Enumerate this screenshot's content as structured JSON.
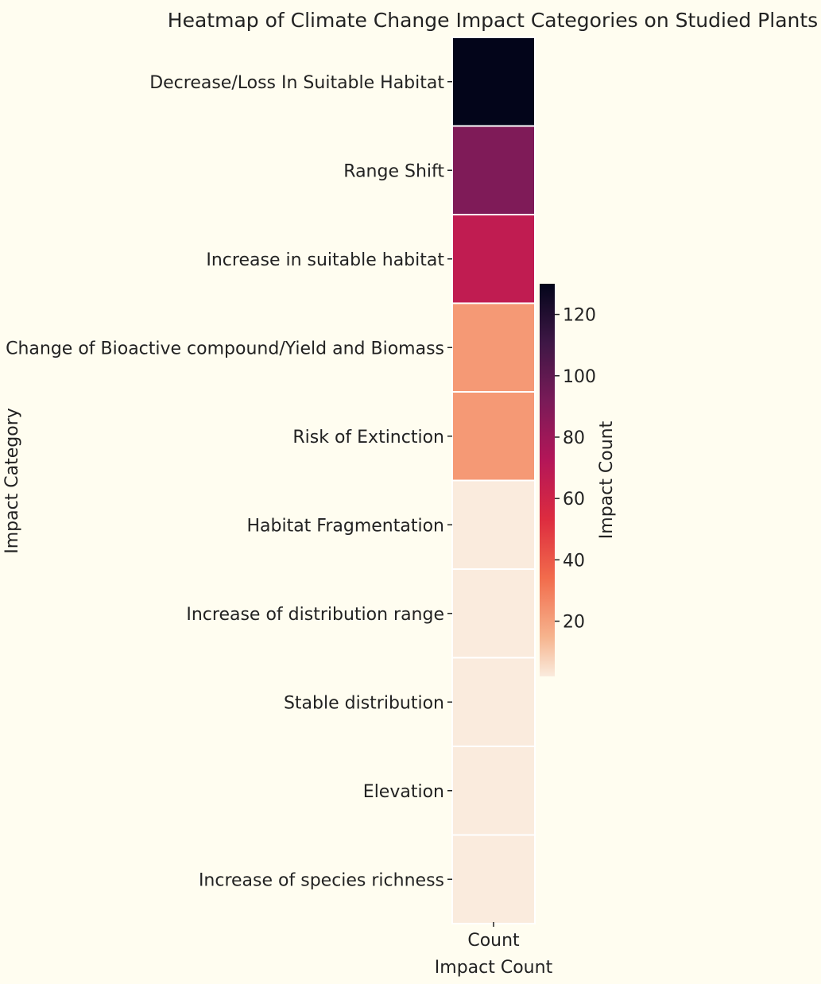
{
  "chart_data": {
    "type": "heatmap",
    "title": "Heatmap of Climate Change Impact Categories on Studied Plants",
    "xlabel": "Impact Count",
    "ylabel": "Impact Category",
    "columns": [
      "Count"
    ],
    "categories": [
      "Decrease/Loss In Suitable Habitat",
      "Range Shift",
      "Increase in suitable habitat",
      "Change of Bioactive compound/Yield and Biomass",
      "Risk of Extinction",
      "Habitat Fragmentation",
      "Increase of distribution range",
      "Stable distribution",
      "Elevation",
      "Increase of species richness"
    ],
    "values": [
      130,
      90,
      67,
      22,
      22,
      2,
      2,
      2,
      2,
      2
    ],
    "colorbar": {
      "label": "Impact Count",
      "range": [
        2,
        130
      ],
      "ticks": [
        20,
        40,
        60,
        80,
        100,
        120
      ],
      "colormap": "rocket_r"
    },
    "colors": {
      "background": "#fffdf0",
      "cell_border": "#ffffff"
    }
  }
}
